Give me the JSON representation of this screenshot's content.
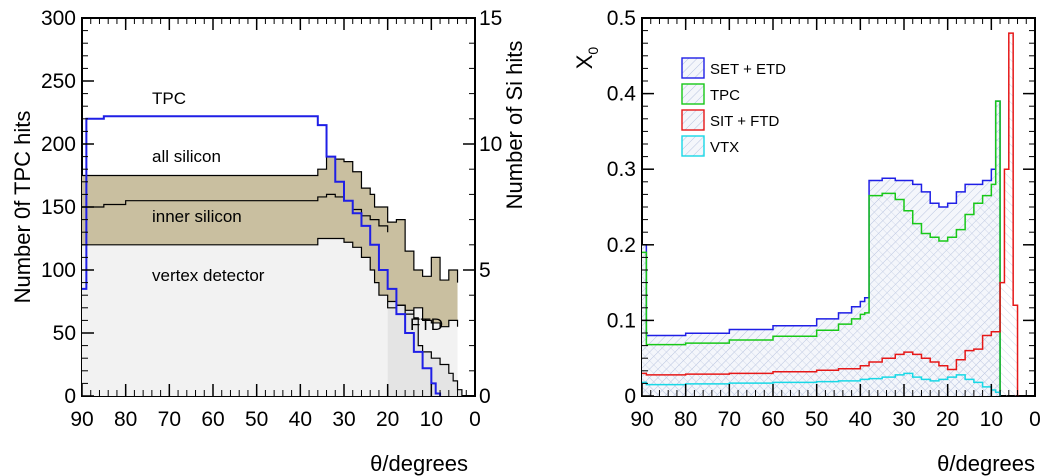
{
  "chart_data": [
    {
      "type": "area",
      "xlabel": "θ/degrees",
      "ylabel": "Number 0f TPC hits",
      "y2label": "Number of Si hits",
      "xlim": [
        90,
        0
      ],
      "ylim": [
        0,
        300
      ],
      "y2lim": [
        0,
        15
      ],
      "x_ticks": [
        "90",
        "80",
        "70",
        "60",
        "50",
        "40",
        "30",
        "20",
        "10",
        "0"
      ],
      "y_ticks": [
        "0",
        "50",
        "100",
        "150",
        "200",
        "250",
        "300"
      ],
      "y2_ticks": [
        "0",
        "5",
        "10",
        "15"
      ],
      "annotations": [
        "TPC",
        "all silicon",
        "inner silicon",
        "vertex detector",
        "FTD"
      ],
      "series": [
        {
          "name": "TPC",
          "color": "#1f1fe6",
          "style": "line",
          "x": [
            90,
            89,
            85,
            80,
            70,
            60,
            50,
            40,
            38,
            36,
            34,
            32,
            30,
            28,
            26,
            24,
            22,
            20,
            18,
            16,
            14,
            12,
            10,
            9,
            8
          ],
          "y": [
            85,
            220,
            222,
            222,
            222,
            222,
            222,
            222,
            222,
            215,
            190,
            170,
            155,
            145,
            135,
            120,
            100,
            85,
            65,
            50,
            35,
            22,
            10,
            2,
            0
          ]
        },
        {
          "name": "all silicon (upper bound)",
          "color": "#000000",
          "style": "step",
          "x": [
            90,
            89,
            85,
            80,
            70,
            60,
            50,
            40,
            37,
            36,
            34,
            32,
            30,
            28,
            26,
            24,
            23,
            22,
            20,
            18,
            16,
            14,
            12,
            10,
            8,
            6,
            4
          ],
          "y": [
            175,
            175,
            175,
            175,
            175,
            175,
            175,
            175,
            175,
            180,
            190,
            188,
            186,
            178,
            165,
            160,
            150,
            150,
            138,
            140,
            115,
            100,
            95,
            110,
            92,
            100,
            90
          ]
        },
        {
          "name": "inner silicon (center)",
          "color": "#000000",
          "style": "step",
          "x": [
            90,
            89,
            85,
            80,
            70,
            60,
            50,
            40,
            37,
            36,
            34,
            32,
            30,
            28,
            26,
            24,
            22,
            20
          ],
          "y": [
            150,
            150,
            152,
            155,
            155,
            155,
            155,
            155,
            155,
            158,
            160,
            158,
            155,
            148,
            143,
            140,
            135,
            130
          ]
        },
        {
          "name": "vertex detector (upper bound)",
          "color": "#000000",
          "style": "step",
          "x": [
            90,
            89,
            85,
            80,
            70,
            60,
            50,
            40,
            37,
            36,
            34,
            32,
            30,
            28,
            26,
            24,
            23,
            22,
            20,
            18,
            16,
            14,
            12,
            10,
            8,
            6,
            4
          ],
          "y": [
            120,
            120,
            120,
            120,
            120,
            120,
            120,
            120,
            120,
            125,
            125,
            125,
            122,
            118,
            110,
            100,
            90,
            80,
            70,
            72,
            65,
            70,
            60,
            58,
            55,
            60,
            55
          ]
        },
        {
          "name": "FTD",
          "color": "#000000",
          "style": "step",
          "x": [
            20,
            18,
            16,
            14,
            13,
            12,
            10,
            8,
            6,
            5,
            4,
            3
          ],
          "y": [
            75,
            72,
            68,
            62,
            40,
            35,
            30,
            25,
            18,
            12,
            5,
            0
          ]
        }
      ]
    },
    {
      "type": "area",
      "xlabel": "θ/degrees",
      "ylabel": "X0",
      "xlim": [
        90,
        0
      ],
      "ylim": [
        0,
        0.5
      ],
      "x_ticks": [
        "90",
        "80",
        "70",
        "60",
        "50",
        "40",
        "30",
        "20",
        "10",
        "0"
      ],
      "y_ticks": [
        "0",
        "0.1",
        "0.2",
        "0.3",
        "0.4",
        "0.5"
      ],
      "legend_position": "top-left",
      "series": [
        {
          "name": "SET + ETD",
          "color": "#1f1fe6",
          "x": [
            90,
            89,
            80,
            70,
            60,
            50,
            45,
            42,
            40,
            39,
            38,
            35,
            32,
            30,
            28,
            26,
            24,
            22,
            20,
            18,
            16,
            14,
            12,
            10,
            9,
            8
          ],
          "y": [
            0.2,
            0.08,
            0.083,
            0.088,
            0.093,
            0.102,
            0.11,
            0.118,
            0.125,
            0.13,
            0.285,
            0.288,
            0.285,
            0.285,
            0.28,
            0.27,
            0.255,
            0.25,
            0.255,
            0.27,
            0.28,
            0.28,
            0.285,
            0.3,
            0.39,
            0.0
          ]
        },
        {
          "name": "TPC",
          "color": "#18c818",
          "x": [
            90,
            89,
            80,
            70,
            60,
            50,
            45,
            42,
            40,
            39,
            38,
            35,
            32,
            30,
            28,
            26,
            24,
            22,
            20,
            18,
            16,
            14,
            12,
            10,
            9,
            8
          ],
          "y": [
            0.19,
            0.068,
            0.07,
            0.074,
            0.079,
            0.087,
            0.095,
            0.102,
            0.108,
            0.11,
            0.265,
            0.268,
            0.26,
            0.245,
            0.228,
            0.215,
            0.21,
            0.205,
            0.21,
            0.22,
            0.24,
            0.255,
            0.265,
            0.28,
            0.39,
            0.0
          ]
        },
        {
          "name": "SIT + FTD",
          "color": "#e61818",
          "x": [
            90,
            89,
            80,
            70,
            60,
            50,
            45,
            40,
            38,
            35,
            32,
            30,
            28,
            26,
            24,
            22,
            20,
            18,
            16,
            14,
            12,
            10,
            8,
            7,
            6,
            5,
            4
          ],
          "y": [
            0.03,
            0.028,
            0.029,
            0.03,
            0.032,
            0.034,
            0.036,
            0.04,
            0.045,
            0.05,
            0.055,
            0.058,
            0.055,
            0.05,
            0.045,
            0.04,
            0.035,
            0.048,
            0.06,
            0.062,
            0.08,
            0.085,
            0.15,
            0.3,
            0.48,
            0.12,
            0.0
          ]
        },
        {
          "name": "VTX",
          "color": "#18d8e6",
          "x": [
            90,
            89,
            80,
            70,
            60,
            50,
            45,
            40,
            38,
            35,
            32,
            30,
            28,
            26,
            24,
            22,
            20,
            18,
            16,
            14,
            12,
            10,
            9,
            8
          ],
          "y": [
            0.018,
            0.015,
            0.016,
            0.017,
            0.018,
            0.019,
            0.02,
            0.022,
            0.023,
            0.025,
            0.028,
            0.03,
            0.025,
            0.022,
            0.02,
            0.022,
            0.025,
            0.028,
            0.022,
            0.018,
            0.012,
            0.008,
            0.005,
            0.0
          ]
        }
      ]
    }
  ]
}
